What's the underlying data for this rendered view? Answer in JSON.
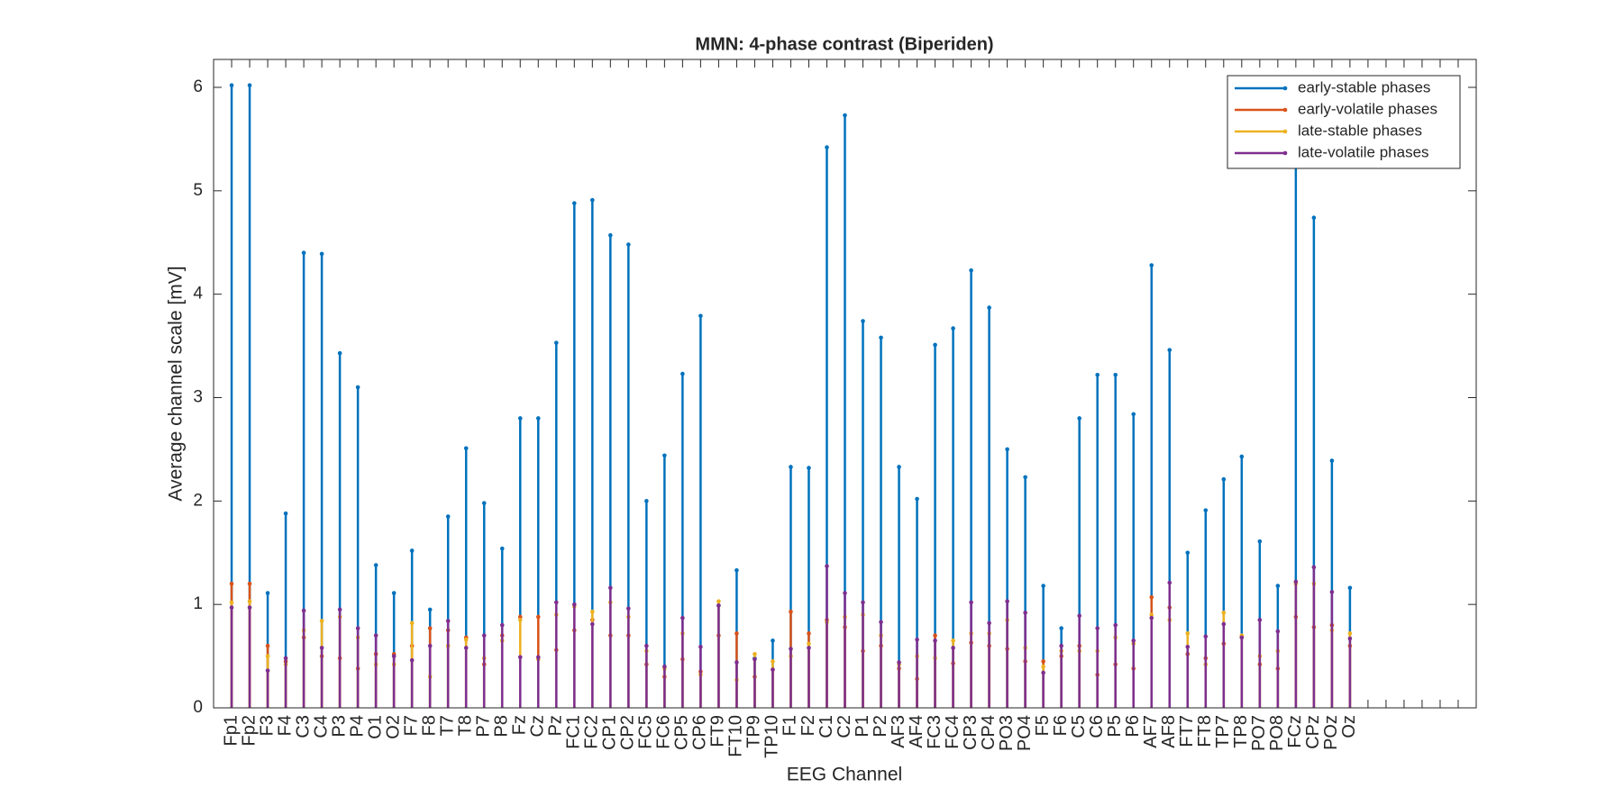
{
  "chart_data": {
    "type": "stem",
    "title": "MMN: 4-phase contrast (Biperiden)",
    "x_label": "EEG Channel",
    "y_label": "Average channel scale [mV]",
    "categories": [
      "Fp1",
      "Fp2",
      "F3",
      "F4",
      "C3",
      "C4",
      "P3",
      "P4",
      "O1",
      "O2",
      "F7",
      "F8",
      "T7",
      "T8",
      "P7",
      "P8",
      "Fz",
      "Cz",
      "Pz",
      "FC1",
      "FC2",
      "CP1",
      "CP2",
      "FC5",
      "FC6",
      "CP5",
      "CP6",
      "FT9",
      "FT10",
      "TP9",
      "TP10",
      "F1",
      "F2",
      "C1",
      "C2",
      "P1",
      "P2",
      "AF3",
      "AF4",
      "FC3",
      "FC4",
      "CP3",
      "CP4",
      "PO3",
      "PO4",
      "F5",
      "F6",
      "C5",
      "C6",
      "P5",
      "P6",
      "AF7",
      "AF8",
      "FT7",
      "FT8",
      "TP7",
      "TP8",
      "PO7",
      "PO8",
      "FCz",
      "CPz",
      "POz",
      "Oz"
    ],
    "series": [
      {
        "name": "early-stable phases",
        "color": "#0072bd",
        "values": [
          6.02,
          6.02,
          1.11,
          1.88,
          4.4,
          4.39,
          3.43,
          3.1,
          1.38,
          1.11,
          1.52,
          0.95,
          1.85,
          2.51,
          1.98,
          1.54,
          2.8,
          2.8,
          3.53,
          4.88,
          4.91,
          4.57,
          4.48,
          2.0,
          2.44,
          3.23,
          3.79,
          0.99,
          1.33,
          0.48,
          0.65,
          2.33,
          2.32,
          5.42,
          5.73,
          3.74,
          3.58,
          2.33,
          2.02,
          3.51,
          3.67,
          4.23,
          3.87,
          2.5,
          2.23,
          1.18,
          0.77,
          2.8,
          3.22,
          3.22,
          2.84,
          4.28,
          3.46,
          1.5,
          1.91,
          2.21,
          2.43,
          1.61,
          1.18,
          5.6,
          4.74,
          2.39,
          1.16
        ]
      },
      {
        "name": "early-volatile phases",
        "color": "#d95319",
        "values": [
          1.2,
          1.2,
          0.6,
          0.45,
          0.68,
          0.5,
          0.48,
          0.38,
          0.52,
          0.52,
          0.6,
          0.77,
          0.75,
          0.68,
          0.42,
          0.7,
          0.88,
          0.88,
          0.56,
          0.75,
          0.85,
          0.7,
          0.7,
          0.42,
          0.3,
          0.47,
          0.35,
          0.7,
          0.72,
          0.3,
          0.37,
          0.93,
          0.72,
          0.85,
          0.78,
          0.55,
          0.6,
          0.38,
          0.28,
          0.7,
          0.43,
          0.63,
          0.6,
          0.57,
          0.45,
          0.45,
          0.5,
          0.6,
          0.32,
          0.42,
          0.38,
          1.07,
          0.97,
          0.52,
          0.48,
          0.62,
          0.68,
          0.42,
          0.38,
          0.88,
          0.78,
          0.8,
          0.6
        ]
      },
      {
        "name": "late-stable phases",
        "color": "#edb120",
        "values": [
          1.02,
          1.03,
          0.5,
          0.42,
          0.75,
          0.84,
          0.88,
          0.68,
          0.42,
          0.42,
          0.82,
          0.3,
          0.6,
          0.66,
          0.48,
          0.65,
          0.85,
          0.47,
          0.9,
          0.98,
          0.93,
          1.02,
          0.88,
          0.55,
          0.38,
          0.72,
          0.32,
          1.03,
          0.27,
          0.52,
          0.45,
          0.5,
          0.62,
          0.83,
          0.88,
          0.9,
          0.7,
          0.42,
          0.5,
          0.48,
          0.65,
          0.72,
          0.72,
          0.85,
          0.58,
          0.4,
          0.55,
          0.55,
          0.55,
          0.68,
          0.62,
          0.9,
          0.85,
          0.72,
          0.42,
          0.92,
          0.7,
          0.5,
          0.55,
          1.2,
          1.2,
          0.75,
          0.72
        ]
      },
      {
        "name": "late-volatile phases",
        "color": "#7e2f8e",
        "values": [
          0.97,
          0.97,
          0.36,
          0.48,
          0.94,
          0.58,
          0.95,
          0.77,
          0.7,
          0.5,
          0.46,
          0.6,
          0.84,
          0.58,
          0.7,
          0.8,
          0.49,
          0.49,
          1.02,
          1.0,
          0.81,
          1.16,
          0.96,
          0.6,
          0.4,
          0.87,
          0.59,
          0.99,
          0.44,
          0.47,
          0.37,
          0.57,
          0.58,
          1.37,
          1.11,
          1.02,
          0.83,
          0.44,
          0.66,
          0.65,
          0.58,
          1.02,
          0.82,
          1.03,
          0.92,
          0.34,
          0.6,
          0.89,
          0.77,
          0.8,
          0.65,
          0.87,
          1.21,
          0.59,
          0.69,
          0.81,
          0.68,
          0.85,
          0.74,
          1.22,
          1.36,
          1.12,
          0.67
        ]
      }
    ],
    "ylim": [
      0,
      6.27
    ],
    "yticks": [
      0,
      1,
      2,
      3,
      4,
      5,
      6
    ],
    "legend": "top-right"
  }
}
